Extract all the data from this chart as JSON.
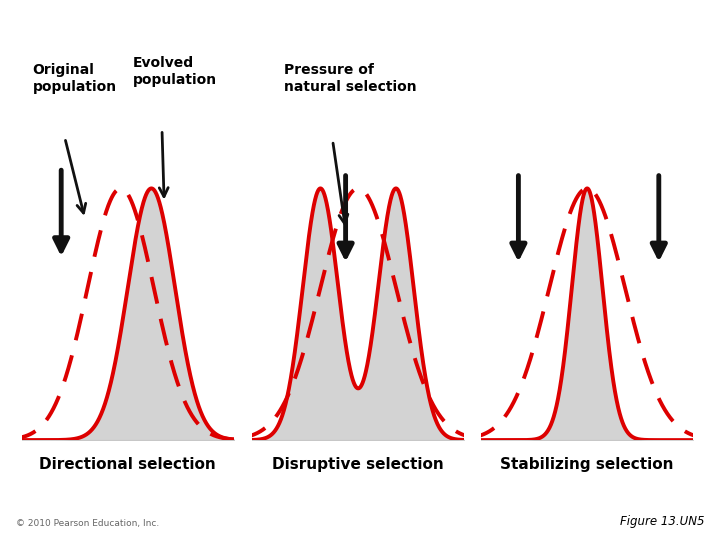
{
  "bg_color": "#ffffff",
  "panel_bg": "#dce9c8",
  "footer_left": "© 2010 Pearson Education, Inc.",
  "footer_right": "Figure 13.UN5",
  "panel_labels": [
    "Directional selection",
    "Disruptive selection",
    "Stabilizing selection"
  ],
  "orig_label": "Original\npopulation",
  "evol_label": "Evolved\npopulation",
  "pressure_label": "Pressure of\nnatural selection",
  "red_color": "#dd0000",
  "arrow_color": "#111111"
}
